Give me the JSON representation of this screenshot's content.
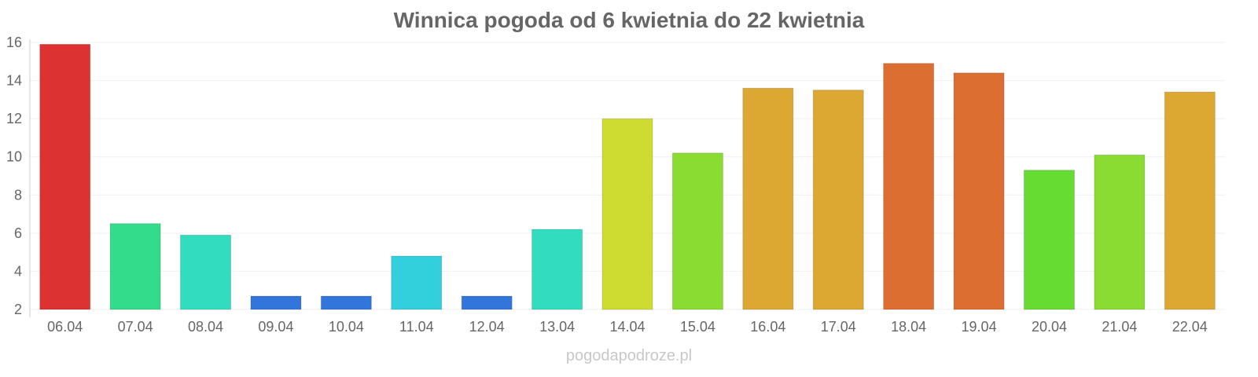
{
  "chart_data": {
    "type": "bar",
    "title": "Winnica pogoda od 6 kwietnia do 22 kwietnia",
    "xlabel": "",
    "ylabel": "",
    "ylim": [
      2,
      16
    ],
    "yticks": [
      2,
      4,
      6,
      8,
      10,
      12,
      14,
      16
    ],
    "grid": true,
    "categories": [
      "06.04",
      "07.04",
      "08.04",
      "09.04",
      "10.04",
      "11.04",
      "12.04",
      "13.04",
      "14.04",
      "15.04",
      "16.04",
      "17.04",
      "18.04",
      "19.04",
      "20.04",
      "21.04",
      "22.04"
    ],
    "values": [
      15.9,
      6.5,
      5.9,
      2.7,
      2.7,
      4.8,
      2.7,
      6.2,
      12.0,
      10.2,
      13.6,
      13.5,
      14.9,
      14.4,
      9.3,
      10.1,
      13.4
    ],
    "colors": [
      "#dc3232",
      "#32dc8a",
      "#32dcbe",
      "#3276dc",
      "#3276dc",
      "#32d0dc",
      "#3276dc",
      "#32dcbe",
      "#cedc32",
      "#8adc32",
      "#dca832",
      "#dca832",
      "#dc6e32",
      "#dc6e32",
      "#66dc32",
      "#8adc32",
      "#dca832"
    ]
  },
  "watermark": "pogodapodroze.pl"
}
